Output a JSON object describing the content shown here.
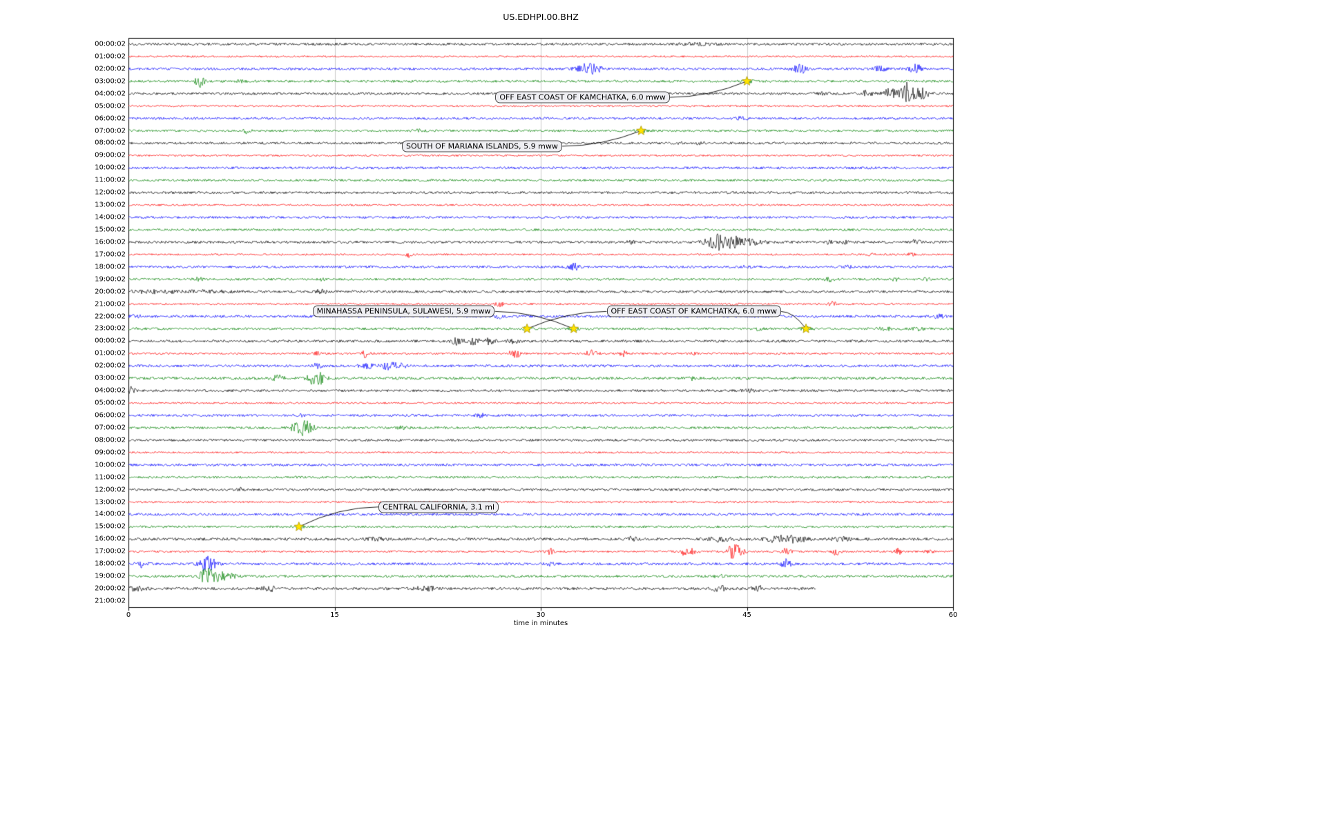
{
  "title": "US.EDHPI.00.BHZ",
  "chart_data": {
    "type": "line",
    "title": "US.EDHPI.00.BHZ",
    "xlabel": "time in minutes",
    "ylabel": "",
    "xlim": [
      0,
      60
    ],
    "x_ticks": [
      0,
      15,
      30,
      45,
      60
    ],
    "grid_x": [
      15,
      30,
      45
    ],
    "grid": "vertical-only",
    "legend": "none",
    "trace_color_cycle": [
      "#000000",
      "#ff0000",
      "#0000ff",
      "#008000"
    ],
    "rows": [
      {
        "label": "00:00:02",
        "base": 1.7,
        "bursts": [
          [
            41.5,
            1.2,
            1.0
          ]
        ]
      },
      {
        "label": "01:00:02",
        "base": 1.3,
        "bursts": []
      },
      {
        "label": "02:00:02",
        "base": 1.8,
        "bursts": [
          [
            33.3,
            6,
            0.5
          ],
          [
            34.0,
            4,
            0.4
          ],
          [
            48.9,
            5.5,
            0.4
          ],
          [
            54.6,
            4,
            0.35
          ],
          [
            57.3,
            6.5,
            0.3
          ]
        ]
      },
      {
        "label": "03:00:02",
        "base": 1.7,
        "bursts": [
          [
            5.2,
            8,
            0.22
          ],
          [
            8.2,
            2,
            0.2
          ],
          [
            45.0,
            1.5,
            0.4
          ]
        ]
      },
      {
        "label": "04:00:02",
        "base": 1.7,
        "bursts": [
          [
            50.5,
            2.5,
            0.3
          ],
          [
            53.8,
            4.5,
            0.3
          ],
          [
            55.4,
            7,
            0.35
          ],
          [
            56.6,
            15,
            0.3
          ],
          [
            57.6,
            9,
            0.4
          ]
        ]
      },
      {
        "label": "05:00:02",
        "base": 1.3,
        "bursts": []
      },
      {
        "label": "06:00:02",
        "base": 1.7,
        "bursts": [
          [
            44.6,
            1.8,
            0.3
          ]
        ]
      },
      {
        "label": "07:00:02",
        "base": 1.6,
        "bursts": [
          [
            8.6,
            2.8,
            0.2
          ],
          [
            21.0,
            1.5,
            0.3
          ],
          [
            37.3,
            1.5,
            0.4
          ]
        ]
      },
      {
        "label": "08:00:02",
        "base": 1.7,
        "bursts": [
          [
            40.3,
            2.2,
            0.2
          ],
          [
            41.6,
            1.8,
            0.2
          ]
        ]
      },
      {
        "label": "09:00:02",
        "base": 1.3,
        "bursts": []
      },
      {
        "label": "10:00:02",
        "base": 1.7,
        "bursts": []
      },
      {
        "label": "11:00:02",
        "base": 1.6,
        "bursts": []
      },
      {
        "label": "12:00:02",
        "base": 1.7,
        "bursts": []
      },
      {
        "label": "13:00:02",
        "base": 1.3,
        "bursts": []
      },
      {
        "label": "14:00:02",
        "base": 1.7,
        "bursts": []
      },
      {
        "label": "15:00:02",
        "base": 1.6,
        "bursts": []
      },
      {
        "label": "16:00:02",
        "base": 1.8,
        "bursts": [
          [
            36.5,
            2,
            0.2
          ],
          [
            42.6,
            11,
            0.45
          ],
          [
            43.8,
            7,
            0.6
          ],
          [
            45.2,
            3.5,
            0.9
          ],
          [
            51.0,
            2,
            0.2
          ],
          [
            52.2,
            2.5,
            0.2
          ],
          [
            57.3,
            2.8,
            0.3
          ]
        ]
      },
      {
        "label": "17:00:02",
        "base": 1.3,
        "bursts": [
          [
            20.4,
            3.5,
            0.15
          ],
          [
            54.0,
            1.8,
            0.2
          ],
          [
            57.0,
            2.5,
            0.2
          ]
        ]
      },
      {
        "label": "18:00:02",
        "base": 1.7,
        "bursts": [
          [
            32.4,
            4.5,
            0.3
          ],
          [
            45.0,
            1.8,
            0.2
          ],
          [
            52.3,
            2.2,
            0.2
          ]
        ]
      },
      {
        "label": "19:00:02",
        "base": 1.6,
        "bursts": [
          [
            5.0,
            2.5,
            0.3
          ],
          [
            14.0,
            2.2,
            0.2
          ],
          [
            51.0,
            2.6,
            0.25
          ],
          [
            55.8,
            2.2,
            0.2
          ],
          [
            58.0,
            1.8,
            0.2
          ]
        ]
      },
      {
        "label": "20:00:02",
        "base": 1.8,
        "bursts": [
          [
            2.0,
            1.8,
            1.5
          ],
          [
            6.0,
            1.6,
            1.0
          ],
          [
            14.0,
            2.2,
            0.3
          ]
        ]
      },
      {
        "label": "21:00:02",
        "base": 1.3,
        "bursts": [
          [
            27.0,
            3.5,
            0.2
          ],
          [
            44.0,
            1.4,
            0.3
          ],
          [
            51.2,
            3.5,
            0.2
          ]
        ]
      },
      {
        "label": "22:00:02",
        "base": 1.8,
        "bursts": [
          [
            0.5,
            1.8,
            0.3
          ],
          [
            27.0,
            2.5,
            0.3
          ],
          [
            59.0,
            2.5,
            0.25
          ]
        ]
      },
      {
        "label": "23:00:02",
        "base": 1.7,
        "bursts": [
          [
            0.7,
            2.5,
            0.2
          ],
          [
            29.0,
            1.8,
            0.3
          ],
          [
            32.4,
            1.8,
            0.3
          ],
          [
            45.8,
            1.8,
            0.2
          ],
          [
            49.3,
            1.8,
            0.3
          ],
          [
            55.0,
            2.5,
            0.3
          ],
          [
            57.5,
            2.2,
            0.3
          ]
        ]
      },
      {
        "label": "00:00:02",
        "base": 1.8,
        "bursts": [
          [
            23.9,
            4.5,
            0.3
          ],
          [
            25.1,
            5.5,
            0.3
          ],
          [
            26.3,
            4.5,
            0.25
          ],
          [
            28.0,
            2.5,
            0.3
          ]
        ]
      },
      {
        "label": "01:00:02",
        "base": 1.4,
        "bursts": [
          [
            13.8,
            2.5,
            0.2
          ],
          [
            17.3,
            6.5,
            0.2
          ],
          [
            28.1,
            9.5,
            0.25
          ],
          [
            33.7,
            4.5,
            0.3
          ],
          [
            36.0,
            3.5,
            0.25
          ],
          [
            41.0,
            2,
            0.2
          ]
        ]
      },
      {
        "label": "02:00:02",
        "base": 1.8,
        "bursts": [
          [
            13.7,
            4.5,
            0.2
          ],
          [
            17.3,
            6.5,
            0.3
          ],
          [
            18.9,
            5.5,
            0.35
          ],
          [
            19.8,
            3.5,
            0.3
          ]
        ]
      },
      {
        "label": "03:00:02",
        "base": 1.9,
        "bursts": [
          [
            10.9,
            5.5,
            0.3
          ],
          [
            13.4,
            9.5,
            0.25
          ],
          [
            13.9,
            7.5,
            0.3
          ],
          [
            41.0,
            2.8,
            0.2
          ]
        ]
      },
      {
        "label": "04:00:02",
        "base": 1.7,
        "bursts": [
          [
            0.2,
            5,
            0.2
          ],
          [
            45.2,
            1.8,
            0.3
          ]
        ]
      },
      {
        "label": "05:00:02",
        "base": 1.3,
        "bursts": []
      },
      {
        "label": "06:00:02",
        "base": 1.7,
        "bursts": [
          [
            12.6,
            1.8,
            0.2
          ],
          [
            25.6,
            3.2,
            0.2
          ]
        ]
      },
      {
        "label": "07:00:02",
        "base": 1.7,
        "bursts": [
          [
            12.0,
            4.5,
            0.2
          ],
          [
            12.6,
            8.5,
            0.3
          ],
          [
            13.1,
            6.5,
            0.3
          ],
          [
            20.0,
            1.8,
            0.3
          ]
        ]
      },
      {
        "label": "08:00:02",
        "base": 1.7,
        "bursts": []
      },
      {
        "label": "09:00:02",
        "base": 1.3,
        "bursts": []
      },
      {
        "label": "10:00:02",
        "base": 1.8,
        "bursts": []
      },
      {
        "label": "11:00:02",
        "base": 1.6,
        "bursts": []
      },
      {
        "label": "12:00:02",
        "base": 1.7,
        "bursts": [
          [
            8.1,
            2.2,
            0.15
          ]
        ]
      },
      {
        "label": "13:00:02",
        "base": 1.3,
        "bursts": []
      },
      {
        "label": "14:00:02",
        "base": 1.8,
        "bursts": []
      },
      {
        "label": "15:00:02",
        "base": 1.6,
        "bursts": [
          [
            12.4,
            1.4,
            0.3
          ]
        ]
      },
      {
        "label": "16:00:02",
        "base": 2.0,
        "bursts": [
          [
            18.0,
            2.8,
            0.4
          ],
          [
            36.6,
            2.8,
            0.3
          ],
          [
            43.0,
            3.2,
            0.5
          ],
          [
            47.3,
            4.5,
            0.6
          ],
          [
            48.6,
            3.8,
            0.5
          ],
          [
            51.8,
            2.8,
            0.4
          ]
        ]
      },
      {
        "label": "17:00:02",
        "base": 1.4,
        "bursts": [
          [
            30.7,
            4.5,
            0.2
          ],
          [
            40.3,
            4.5,
            0.25
          ],
          [
            41.0,
            3.5,
            0.3
          ],
          [
            43.8,
            8.5,
            0.3
          ],
          [
            44.4,
            6.5,
            0.3
          ],
          [
            47.8,
            3.8,
            0.3
          ],
          [
            51.5,
            4.5,
            0.25
          ],
          [
            56.0,
            4.5,
            0.2
          ],
          [
            58.3,
            2.8,
            0.2
          ]
        ]
      },
      {
        "label": "18:00:02",
        "base": 1.8,
        "bursts": [
          [
            1.0,
            4.5,
            0.25
          ],
          [
            5.6,
            8.5,
            0.3
          ],
          [
            6.1,
            5.5,
            0.3
          ],
          [
            30.7,
            2.2,
            0.2
          ],
          [
            47.8,
            6.5,
            0.25
          ]
        ]
      },
      {
        "label": "19:00:02",
        "base": 1.7,
        "bursts": [
          [
            5.6,
            9.5,
            0.3
          ],
          [
            6.3,
            7,
            0.4
          ],
          [
            7.2,
            3.5,
            0.5
          ],
          [
            43.0,
            1.8,
            0.3
          ]
        ]
      },
      {
        "label": "20:00:02",
        "base": 1.9,
        "end": 50,
        "bursts": [
          [
            0.5,
            2.5,
            0.5
          ],
          [
            10.3,
            3.5,
            0.4
          ],
          [
            21.5,
            3,
            0.4
          ],
          [
            22.3,
            2.5,
            0.3
          ],
          [
            43.0,
            4.5,
            0.3
          ],
          [
            45.8,
            4.5,
            0.3
          ]
        ]
      },
      {
        "label": "21:00:02",
        "base": 0,
        "end": 0,
        "bursts": []
      }
    ],
    "events": [
      {
        "label": "OFF EAST COAST OF KAMCHATKA, 6.0 mww",
        "box_x": 26.7,
        "box_row": 4.8,
        "stars": [
          {
            "row": 3,
            "x": 45.0
          }
        ],
        "marker_color": "#ffe400"
      },
      {
        "label": "SOUTH OF MARIANA ISLANDS, 5.9 mww",
        "box_x": 19.9,
        "box_row": 8.75,
        "stars": [
          {
            "row": 7,
            "x": 37.3
          }
        ],
        "marker_color": "#ffe400"
      },
      {
        "label": "MINAHASSA PENINSULA, SULAWESI, 5.9 mww",
        "box_x": 13.4,
        "box_row": 22.1,
        "stars": [
          {
            "row": 23,
            "x": 32.4
          }
        ],
        "marker_color": "#ffe400"
      },
      {
        "label": "OFF EAST COAST OF KAMCHATKA, 6.0 mww",
        "box_x": 34.8,
        "box_row": 22.1,
        "stars": [
          {
            "row": 23,
            "x": 29.0
          },
          {
            "row": 23,
            "x": 49.3
          }
        ],
        "marker_color": "#ffe400"
      },
      {
        "label": "CENTRAL CALIFORNIA, 3.1 ml",
        "box_x": 18.2,
        "box_row": 37.9,
        "stars": [
          {
            "row": 39,
            "x": 12.4
          }
        ],
        "marker_color": "#ffe400"
      }
    ]
  }
}
